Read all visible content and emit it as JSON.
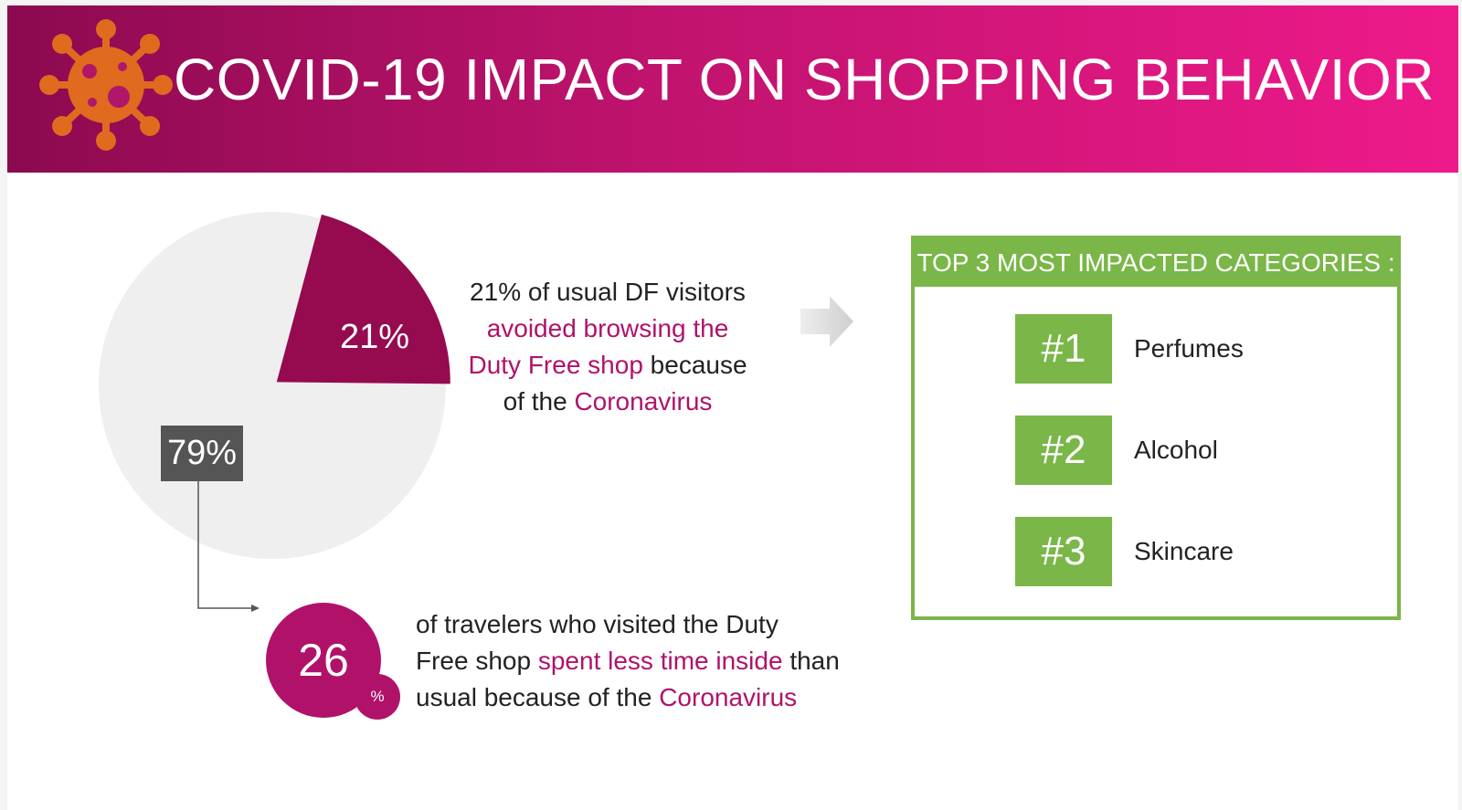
{
  "header": {
    "title": "COVID-19 IMPACT ON SHOPPING BEHAVIOR",
    "icon": "virus-icon"
  },
  "chart_data": {
    "type": "pie",
    "slices": [
      {
        "label": "21%",
        "value": 21
      },
      {
        "label": "79%",
        "value": 79
      }
    ]
  },
  "stat1": {
    "line1": "21% of usual DF visitors",
    "line2_hl": "avoided browsing the",
    "line3_hl": "Duty Free shop",
    "line3_rest": " because",
    "line4_pre": "of the ",
    "line4_hl": "Coronavirus"
  },
  "stat2": {
    "value": "26",
    "unit": "%",
    "line1": "of travelers who visited the Duty",
    "line2_pre": "Free shop ",
    "line2_hl": "spent less time inside",
    "line2_post": " than",
    "line3_pre": "usual because of the ",
    "line3_hl": "Coronavirus"
  },
  "categories": {
    "header": "TOP 3 MOST IMPACTED CATEGORIES :",
    "items": [
      {
        "rank": "#1",
        "name": "Perfumes"
      },
      {
        "rank": "#2",
        "name": "Alcohol"
      },
      {
        "rank": "#3",
        "name": "Skincare"
      }
    ]
  },
  "colors": {
    "magenta": "#b0126a",
    "slice_main": "#960a50",
    "slice_rest": "#efefef",
    "green": "#7ab648",
    "dark_label": "#555555"
  }
}
